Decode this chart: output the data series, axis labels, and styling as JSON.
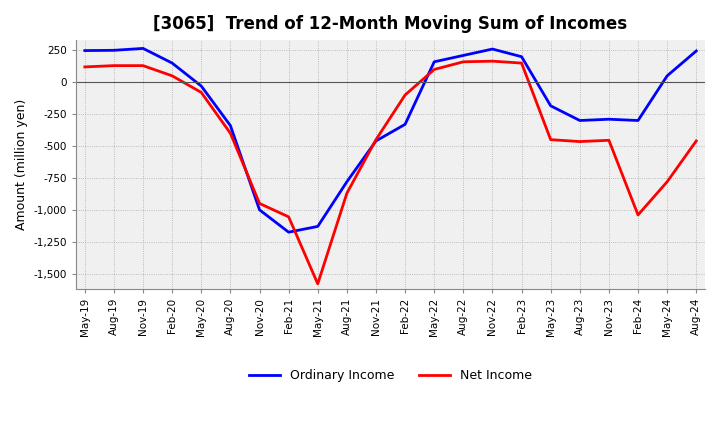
{
  "title": "[3065]  Trend of 12-Month Moving Sum of Incomes",
  "ylabel": "Amount (million yen)",
  "ylim": [
    -1620,
    330
  ],
  "yticks": [
    250,
    0,
    -250,
    -500,
    -750,
    -1000,
    -1250,
    -1500
  ],
  "bg_color": "#ffffff",
  "plot_bg_color": "#f0f0f0",
  "grid_color": "#aaaaaa",
  "ordinary_income_color": "#0000ff",
  "net_income_color": "#ff0000",
  "line_width": 2.0,
  "x_labels": [
    "May-19",
    "Aug-19",
    "Nov-19",
    "Feb-20",
    "May-20",
    "Aug-20",
    "Nov-20",
    "Feb-21",
    "May-21",
    "Aug-21",
    "Nov-21",
    "Feb-22",
    "May-22",
    "Aug-22",
    "Nov-22",
    "Feb-23",
    "May-23",
    "Aug-23",
    "Nov-23",
    "Feb-24",
    "May-24",
    "Aug-24"
  ],
  "ordinary_income": [
    248,
    250,
    265,
    150,
    -30,
    -340,
    -1000,
    -1175,
    -1130,
    -780,
    -460,
    -330,
    160,
    210,
    260,
    200,
    -185,
    -300,
    -290,
    -300,
    50,
    245
  ],
  "net_income": [
    120,
    130,
    130,
    50,
    -80,
    -400,
    -950,
    -1055,
    -1580,
    -870,
    -450,
    -100,
    100,
    160,
    165,
    150,
    -450,
    -465,
    -455,
    -1040,
    -780,
    -460
  ]
}
